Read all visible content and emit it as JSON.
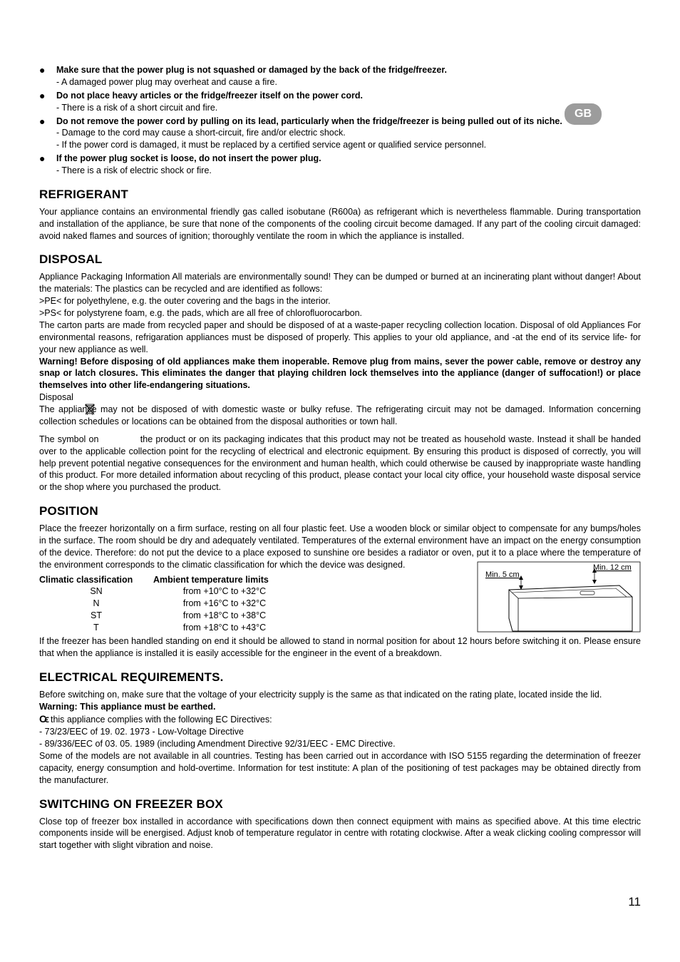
{
  "badge": "GB",
  "bullets": [
    {
      "main": "Make sure that the power plug is not squashed or damaged by the back of the fridge/freezer.",
      "subs": [
        "- A damaged power plug may overheat and cause a fire."
      ]
    },
    {
      "main": "Do not place heavy articles or the fridge/freezer itself on the power cord.",
      "subs": [
        "- There is a risk of a short circuit and fire."
      ]
    },
    {
      "main": "Do not remove the power cord by pulling on its lead, particularly when the fridge/freezer is being pulled out of its niche.",
      "subs": [
        "- Damage to the cord may cause a short-circuit, fire and/or electric shock.",
        "- If the power cord is damaged, it must be replaced by a certified service agent or qualified service personnel."
      ]
    },
    {
      "main": "If the power plug socket is loose, do not insert the power plug.",
      "subs": [
        "- There is a risk of electric shock or fire."
      ]
    }
  ],
  "refrigerant": {
    "heading": "REFRIGERANT",
    "text": "Your appliance contains an environmental friendly gas called isobutane (R600a) as refrigerant which is nevertheless flammable. During transportation and installation of the appliance, be sure that none of the components of the cooling circuit become damaged. If any part of the cooling circuit damaged: avoid naked flames and sources of ignition; thoroughly  ventilate the room in which the appliance is installed."
  },
  "disposal": {
    "heading": "DISPOSAL",
    "p1": "Appliance Packaging Information All materials are environmentally sound! They can be dumped or burned at an incinerating plant without danger! About the materials: The plastics can be recycled and are identified as follows:",
    "p2": ">PE< for polyethylene, e.g. the outer covering and the bags in the interior.",
    "p3": ">PS< for polystyrene foam, e.g. the pads, which are all free of chlorofluorocarbon.",
    "p4": "The carton parts are made from recycled paper and should be disposed of at a waste-paper recycling collection location. Disposal of old Appliances For environmental reasons, refrigaration appliances must be disposed of properly. This applies to your old appliance, and -at the end of its service life- for your new appliance as well.",
    "warn": "Warning! Before disposing of old appliances make them inoperable. Remove plug from mains, sever the power cable, remove or destroy any snap or latch closures. This eliminates the danger that playing children lock themselves into the appliance (danger of suffocation!) or place themselves into other life-endangering situations.",
    "p5a": "Disposal",
    "p5": "The appliance may not be disposed of with domestic waste or bulky refuse. The refrigerating circuit may not be damaged. Information concerning collection schedules or locations can be obtained from the disposal authorities or town hall.",
    "p6a": "The symbol on ",
    "p6b": " the product or on its packaging indicates that this product may not be treated as household waste. Instead it shall be handed over to the applicable collection point for the recycling of electrical and electronic equipment. By ensuring this product is disposed of correctly, you will help prevent potential negative consequences for the environment and human health, which could otherwise be caused by inappropriate waste handling of this product. For more detailed information about recycling of this product, please contact your local city office, your household waste disposal service or the shop where you purchased the product."
  },
  "position": {
    "heading": "POSITION",
    "p1": "Place the freezer horizontally on a firm surface, resting on all four plastic feet. Use a wooden block or similar object to compensate for any bumps/holes in the surface. The room should be dry and adequately ventilated. Temperatures of the external environment have an impact on the energy consumption of the device. Therefore: do not put the device to a place exposed to sunshine ore besides a radiator or oven, put it to a place where the temperature of the environment corresponds to the climatic classification for which the device was designed.",
    "table": {
      "h1": "Climatic classification",
      "h2": "Ambient temperature limits",
      "rows": [
        {
          "cc": "SN",
          "at": "from +10°C to +32°C"
        },
        {
          "cc": "N",
          "at": "from +16°C to +32°C"
        },
        {
          "cc": "ST",
          "at": "from +18°C to +38°C"
        },
        {
          "cc": "T",
          "at": "from +18°C to +43°C"
        }
      ]
    },
    "p2": "If the freezer has been handled standing on end it should be allowed to stand in normal position for about 12 hours before switching it on. Please ensure that when the appliance is installed it is easily accessible for the engineer in the event of a breakdown.",
    "diagram": {
      "label_left": "Min. 5 cm",
      "label_right": "Min. 12 cm"
    }
  },
  "electrical": {
    "heading": "ELECTRICAL REQUIREMENTS.",
    "p1": "Before switching on, make sure that the voltage of your electricity supply is the same as that indicated on the rating plate, located inside the lid.",
    "warn": "Warning: This appliance must be earthed.",
    "p2": "this appliance complies with the following EC Directives:",
    "p3": "- 73/23/EEC of 19. 02. 1973 - Low-Voltage Directive",
    "p4": "- 89/336/EEC of 03. 05. 1989 (including Amendment Directive 92/31/EEC - EMC Directive.",
    "p5": "Some of the models are not available in all countries. Testing has been carried out in accordance with ISO 5155 regarding the determination of freezer capacity, energy consumption and hold-overtime. Information for test institute: A plan of the positioning of test packages may be obtained directly from the manufacturer."
  },
  "switching": {
    "heading": "SWITCHING ON FREEZER BOX",
    "p1": "Close top of freezer box installed in accordance with specifications down then connect equipment with mains as specified above. At this time electric components inside will be energised. Adjust knob of temperature regulator in centre with rotating clockwise. After a weak clicking cooling compressor will start together with slight vibration and noise."
  },
  "pagenum": "11"
}
